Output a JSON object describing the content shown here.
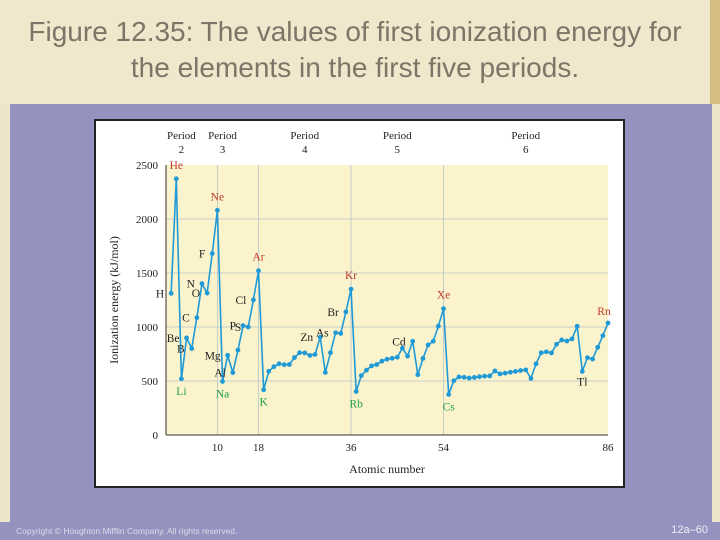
{
  "title": "Figure 12.35:  The values of first ionization energy for the elements in the first five periods.",
  "footer": {
    "copyright": "Copyright © Houghton Mifflin Company. All rights reserved.",
    "slide_number": "12a–60"
  },
  "colors": {
    "plot_bg": "#fbf3cc",
    "line": "#1f9ad6",
    "noble_label": "#c0392b",
    "alkali_label": "#1e9e4a",
    "frame_bg": "#9592bf"
  },
  "chart_data": {
    "type": "line",
    "xlabel": "Atomic number",
    "ylabel": "Ionization energy (kJ/mol)",
    "xlim": [
      0,
      86
    ],
    "ylim": [
      0,
      2500
    ],
    "xticks": [
      10,
      18,
      36,
      54,
      86
    ],
    "yticks": [
      0,
      500,
      1000,
      1500,
      2000,
      2500
    ],
    "grid": true,
    "periods": [
      {
        "label": "Period",
        "number": "2",
        "x": 3
      },
      {
        "label": "Period",
        "number": "3",
        "x": 11
      },
      {
        "label": "Period",
        "number": "4",
        "x": 27
      },
      {
        "label": "Period",
        "number": "5",
        "x": 45
      },
      {
        "label": "Period",
        "number": "6",
        "x": 70
      }
    ],
    "series": [
      {
        "x": [
          1,
          2,
          3,
          4,
          5,
          6,
          7,
          8,
          9,
          10,
          11,
          12,
          13,
          14,
          15,
          16,
          17,
          18,
          19,
          20,
          21,
          22,
          23,
          24,
          25,
          26,
          27,
          28,
          29,
          30,
          31,
          32,
          33,
          34,
          35,
          36,
          37,
          38,
          39,
          40,
          41,
          42,
          43,
          44,
          45,
          46,
          47,
          48,
          49,
          50,
          51,
          52,
          53,
          54,
          55,
          56,
          57,
          58,
          59,
          60,
          61,
          62,
          63,
          64,
          65,
          66,
          67,
          68,
          69,
          70,
          71,
          72,
          73,
          74,
          75,
          76,
          77,
          78,
          79,
          80,
          81,
          82,
          83,
          84,
          85,
          86
        ],
        "y": [
          1312,
          2372,
          520,
          899,
          801,
          1086,
          1402,
          1314,
          1681,
          2081,
          496,
          738,
          578,
          786,
          1012,
          1000,
          1251,
          1521,
          419,
          590,
          633,
          659,
          651,
          653,
          717,
          762,
          760,
          737,
          746,
          906,
          579,
          762,
          947,
          941,
          1140,
          1351,
          403,
          550,
          600,
          640,
          652,
          684,
          702,
          710,
          720,
          804,
          731,
          868,
          558,
          709,
          834,
          869,
          1008,
          1170,
          376,
          503,
          538,
          534,
          527,
          533,
          540,
          545,
          547,
          593,
          566,
          573,
          581,
          589,
          597,
          603,
          524,
          659,
          761,
          770,
          760,
          840,
          880,
          870,
          890,
          1007,
          589,
          716,
          703,
          812,
          920,
          1037
        ]
      }
    ],
    "labels": [
      {
        "text": "He",
        "x": 2,
        "y": 2372,
        "kind": "noble"
      },
      {
        "text": "Ne",
        "x": 10,
        "y": 2081,
        "kind": "noble"
      },
      {
        "text": "Ar",
        "x": 18,
        "y": 1521,
        "kind": "noble"
      },
      {
        "text": "Kr",
        "x": 36,
        "y": 1351,
        "kind": "noble"
      },
      {
        "text": "Xe",
        "x": 54,
        "y": 1170,
        "kind": "noble"
      },
      {
        "text": "Rn",
        "x": 86,
        "y": 1037,
        "kind": "noble"
      },
      {
        "text": "Li",
        "x": 3,
        "y": 520,
        "kind": "alkali"
      },
      {
        "text": "Na",
        "x": 11,
        "y": 496,
        "kind": "alkali"
      },
      {
        "text": "K",
        "x": 19,
        "y": 419,
        "kind": "alkali"
      },
      {
        "text": "Rb",
        "x": 37,
        "y": 403,
        "kind": "alkali"
      },
      {
        "text": "Cs",
        "x": 55,
        "y": 376,
        "kind": "alkali"
      },
      {
        "text": "H",
        "x": 1,
        "y": 1312,
        "kind": "other"
      },
      {
        "text": "Be",
        "x": 4,
        "y": 899,
        "kind": "other"
      },
      {
        "text": "B",
        "x": 5,
        "y": 801,
        "kind": "other"
      },
      {
        "text": "C",
        "x": 6,
        "y": 1086,
        "kind": "other"
      },
      {
        "text": "N",
        "x": 7,
        "y": 1402,
        "kind": "other"
      },
      {
        "text": "O",
        "x": 8,
        "y": 1314,
        "kind": "other"
      },
      {
        "text": "F",
        "x": 9,
        "y": 1681,
        "kind": "other"
      },
      {
        "text": "Mg",
        "x": 12,
        "y": 738,
        "kind": "other"
      },
      {
        "text": "Al",
        "x": 13,
        "y": 578,
        "kind": "other"
      },
      {
        "text": "P",
        "x": 15,
        "y": 1012,
        "kind": "other"
      },
      {
        "text": "S",
        "x": 16,
        "y": 1000,
        "kind": "other"
      },
      {
        "text": "Cl",
        "x": 17,
        "y": 1251,
        "kind": "other"
      },
      {
        "text": "Zn",
        "x": 30,
        "y": 906,
        "kind": "other"
      },
      {
        "text": "As",
        "x": 33,
        "y": 947,
        "kind": "other"
      },
      {
        "text": "Br",
        "x": 35,
        "y": 1140,
        "kind": "other"
      },
      {
        "text": "Cd",
        "x": 48,
        "y": 868,
        "kind": "other"
      },
      {
        "text": "Tl",
        "x": 81,
        "y": 589,
        "kind": "other"
      }
    ]
  }
}
